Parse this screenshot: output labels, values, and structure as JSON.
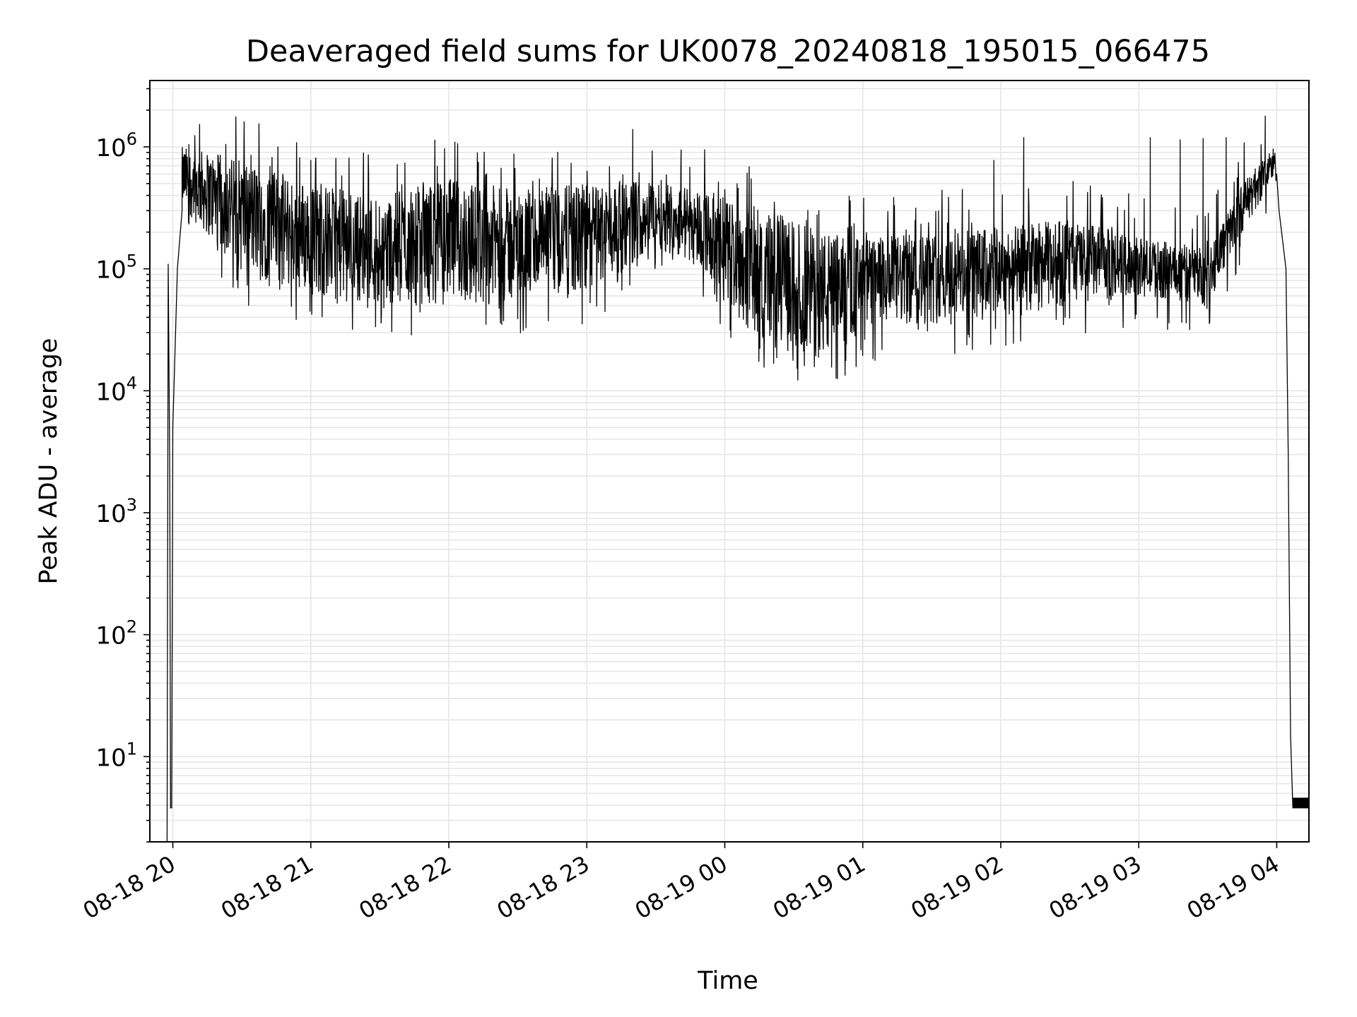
{
  "chart_data": {
    "type": "line",
    "title": "Deaveraged field sums for UK0078_20240818_195015_066475",
    "xlabel": "Time",
    "ylabel": "Peak ADU - average",
    "yscale": "log",
    "grid": true,
    "line_color": "#000000",
    "grid_color": "#e6e6e6",
    "xlim": [
      "2024-08-18 19:50",
      "2024-08-19 04:14"
    ],
    "ylim": [
      2,
      3500000
    ],
    "xticks": [
      {
        "t": "2024-08-18 20:00",
        "label": "08-18 20"
      },
      {
        "t": "2024-08-18 21:00",
        "label": "08-18 21"
      },
      {
        "t": "2024-08-18 22:00",
        "label": "08-18 22"
      },
      {
        "t": "2024-08-18 23:00",
        "label": "08-18 23"
      },
      {
        "t": "2024-08-19 00:00",
        "label": "08-19 00"
      },
      {
        "t": "2024-08-19 01:00",
        "label": "08-19 01"
      },
      {
        "t": "2024-08-19 02:00",
        "label": "08-19 02"
      },
      {
        "t": "2024-08-19 03:00",
        "label": "08-19 03"
      },
      {
        "t": "2024-08-19 04:00",
        "label": "08-19 04"
      }
    ],
    "yticks": [
      {
        "value": 10,
        "base": "10",
        "exp": "1"
      },
      {
        "value": 100,
        "base": "10",
        "exp": "2"
      },
      {
        "value": 1000,
        "base": "10",
        "exp": "3"
      },
      {
        "value": 10000,
        "base": "10",
        "exp": "4"
      },
      {
        "value": 100000,
        "base": "10",
        "exp": "5"
      },
      {
        "value": 1000000,
        "base": "10",
        "exp": "6"
      }
    ],
    "series": [
      {
        "x": [
          "2024-08-18 19:57:30",
          "2024-08-18 19:58:00",
          "2024-08-18 19:58:20",
          "2024-08-18 19:58:40",
          "2024-08-18 19:59:00",
          "2024-08-18 19:59:30",
          "2024-08-18 20:00:00",
          "2024-08-18 20:02:00",
          "2024-08-18 20:04:00",
          "2024-08-18 20:06:00",
          "2024-08-18 20:08:00",
          "2024-08-18 20:10:00",
          "2024-08-18 20:15:00",
          "2024-08-18 20:20:00",
          "2024-08-18 20:30:00",
          "2024-08-18 20:40:00",
          "2024-08-18 20:50:00",
          "2024-08-18 21:00:00",
          "2024-08-18 21:30:00",
          "2024-08-18 22:00:00",
          "2024-08-18 22:30:00",
          "2024-08-18 23:00:00",
          "2024-08-18 23:30:00",
          "2024-08-18 23:50:00",
          "2024-08-19 00:00:00",
          "2024-08-19 00:20:00",
          "2024-08-19 00:40:00",
          "2024-08-19 01:00:00",
          "2024-08-19 01:20:00",
          "2024-08-19 01:40:00",
          "2024-08-19 02:00:00",
          "2024-08-19 02:30:00",
          "2024-08-19 03:00:00",
          "2024-08-19 03:20:00",
          "2024-08-19 03:30:00",
          "2024-08-19 03:40:00",
          "2024-08-19 03:50:00",
          "2024-08-19 03:55:00",
          "2024-08-19 04:00:00",
          "2024-08-19 04:01:00",
          "2024-08-19 04:04:00",
          "2024-08-19 04:05:00",
          "2024-08-19 04:06:00",
          "2024-08-19 04:07:00",
          "2024-08-19 04:14:00"
        ],
        "y": [
          2,
          110000,
          15000,
          2000,
          3.8,
          3.8,
          5000,
          100000,
          300000,
          700000,
          900000,
          700000,
          400000,
          300000,
          250000,
          200000,
          150000,
          120000,
          110000,
          110000,
          120000,
          180000,
          300000,
          350000,
          200000,
          100000,
          60000,
          50000,
          60000,
          70000,
          80000,
          90000,
          100000,
          90000,
          80000,
          200000,
          450000,
          650000,
          900000,
          300000,
          100000,
          3000,
          15,
          3.8,
          3.8
        ],
        "noise_band": [
          {
            "t": "2024-08-18 20:05",
            "low": 300000,
            "high": 1000000
          },
          {
            "t": "2024-08-18 20:30",
            "low": 90000,
            "high": 800000
          },
          {
            "t": "2024-08-18 21:00",
            "low": 60000,
            "high": 500000
          },
          {
            "t": "2024-08-18 21:30",
            "low": 50000,
            "high": 400000
          },
          {
            "t": "2024-08-18 22:00",
            "low": 50000,
            "high": 550000
          },
          {
            "t": "2024-08-18 22:30",
            "low": 50000,
            "high": 450000
          },
          {
            "t": "2024-08-18 23:00",
            "low": 60000,
            "high": 500000
          },
          {
            "t": "2024-08-18 23:30",
            "low": 150000,
            "high": 550000
          },
          {
            "t": "2024-08-18 23:50",
            "low": 100000,
            "high": 450000
          },
          {
            "t": "2024-08-19 00:10",
            "low": 30000,
            "high": 350000
          },
          {
            "t": "2024-08-19 00:30",
            "low": 20000,
            "high": 250000
          },
          {
            "t": "2024-08-19 00:45",
            "low": 17000,
            "high": 200000
          },
          {
            "t": "2024-08-19 01:00",
            "low": 30000,
            "high": 180000
          },
          {
            "t": "2024-08-19 01:30",
            "low": 35000,
            "high": 200000
          },
          {
            "t": "2024-08-19 02:00",
            "low": 40000,
            "high": 220000
          },
          {
            "t": "2024-08-19 02:30",
            "low": 50000,
            "high": 260000
          },
          {
            "t": "2024-08-19 03:00",
            "low": 60000,
            "high": 180000
          },
          {
            "t": "2024-08-19 03:30",
            "low": 50000,
            "high": 150000
          },
          {
            "t": "2024-08-19 03:45",
            "low": 200000,
            "high": 500000
          },
          {
            "t": "2024-08-19 03:58",
            "low": 500000,
            "high": 1000000
          }
        ],
        "spikes": [
          {
            "t": "2024-08-18 20:07",
            "y": 1050000
          },
          {
            "t": "2024-08-18 20:34",
            "y": 860000
          },
          {
            "t": "2024-08-18 21:00",
            "y": 780000
          },
          {
            "t": "2024-08-18 21:55",
            "y": 700000
          },
          {
            "t": "2024-08-18 23:20",
            "y": 1400000
          },
          {
            "t": "2024-08-18 23:41",
            "y": 950000
          },
          {
            "t": "2024-08-19 00:00",
            "y": 450000
          },
          {
            "t": "2024-08-19 00:49",
            "y": 12500
          },
          {
            "t": "2024-08-19 01:40",
            "y": 20000
          },
          {
            "t": "2024-08-19 01:57",
            "y": 780000
          },
          {
            "t": "2024-08-19 02:10",
            "y": 1200000
          },
          {
            "t": "2024-08-19 03:05",
            "y": 1200000
          },
          {
            "t": "2024-08-19 03:18",
            "y": 1150000
          },
          {
            "t": "2024-08-19 03:28",
            "y": 1180000
          },
          {
            "t": "2024-08-19 03:38",
            "y": 1200000
          },
          {
            "t": "2024-08-19 03:55",
            "y": 1800000
          }
        ]
      }
    ]
  }
}
